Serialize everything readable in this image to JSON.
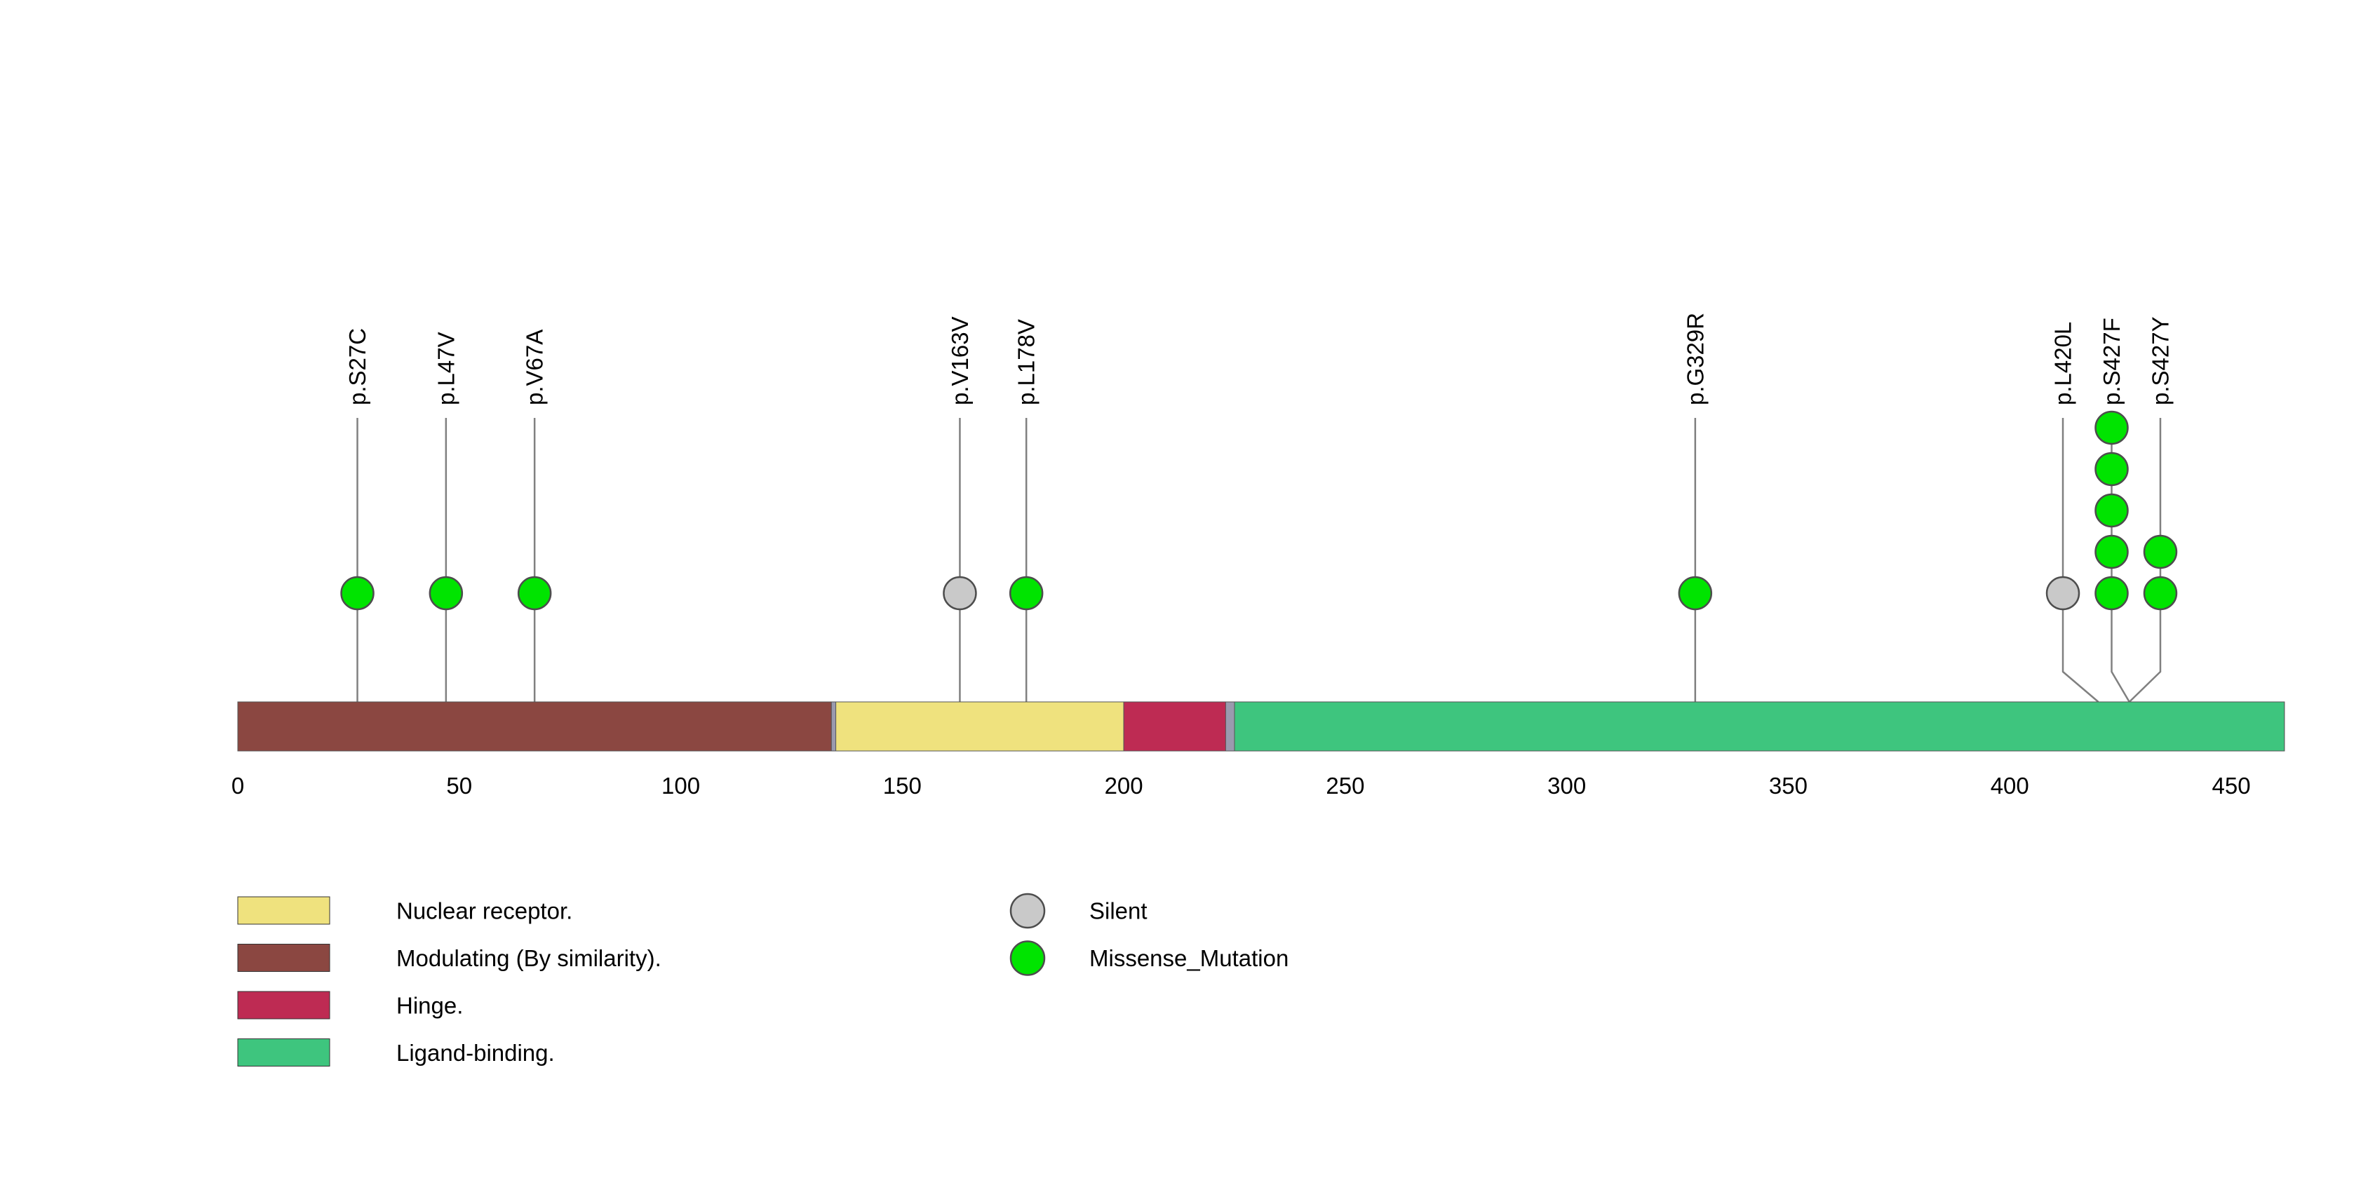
{
  "chart_data": {
    "type": "lollipop",
    "title": "",
    "protein_length": 462,
    "xlim": [
      0,
      462
    ],
    "x_ticks": [
      0,
      50,
      100,
      150,
      200,
      250,
      300,
      350,
      400,
      450
    ],
    "backbone_color": "#9A9AAE",
    "stem_color": "#808080",
    "circle_stroke": "#4D4D4D",
    "domains": [
      {
        "name": "Modulating (By similarity).",
        "start": 1,
        "end": 134,
        "color": "#8B4741"
      },
      {
        "name": "Nuclear receptor.",
        "start": 136,
        "end": 200,
        "color": "#EFE27E"
      },
      {
        "name": "Hinge.",
        "start": 201,
        "end": 223,
        "color": "#BE2B53"
      },
      {
        "name": "Ligand-binding.",
        "start": 226,
        "end": 462,
        "color": "#3EC57E"
      }
    ],
    "mutation_types": [
      {
        "name": "Silent",
        "color": "#C9C9C9"
      },
      {
        "name": "Missense_Mutation",
        "color": "#00E400"
      }
    ],
    "mutations": [
      {
        "label": "p.S27C",
        "pos": 27,
        "type": "Missense_Mutation",
        "count": 1
      },
      {
        "label": "p.L47V",
        "pos": 47,
        "type": "Missense_Mutation",
        "count": 1
      },
      {
        "label": "p.V67A",
        "pos": 67,
        "type": "Missense_Mutation",
        "count": 1
      },
      {
        "label": "p.V163V",
        "pos": 163,
        "type": "Silent",
        "count": 1
      },
      {
        "label": "p.L178V",
        "pos": 178,
        "type": "Missense_Mutation",
        "count": 1
      },
      {
        "label": "p.G329R",
        "pos": 329,
        "type": "Missense_Mutation",
        "count": 1
      },
      {
        "label": "p.L420L",
        "pos": 420,
        "type": "Silent",
        "count": 1,
        "display_pos": 412
      },
      {
        "label": "p.S427F",
        "pos": 427,
        "type": "Missense_Mutation",
        "count": 5,
        "display_pos": 423
      },
      {
        "label": "p.S427Y",
        "pos": 427,
        "type": "Missense_Mutation",
        "count": 2,
        "display_pos": 434
      }
    ],
    "legend": {
      "domains": [
        "Nuclear receptor.",
        "Modulating (By similarity).",
        "Hinge.",
        "Ligand-binding."
      ],
      "mutation_types": [
        "Silent",
        "Missense_Mutation"
      ]
    },
    "layout": {
      "legend_position": "bottom",
      "grid": false,
      "label_rotation": -90
    }
  }
}
